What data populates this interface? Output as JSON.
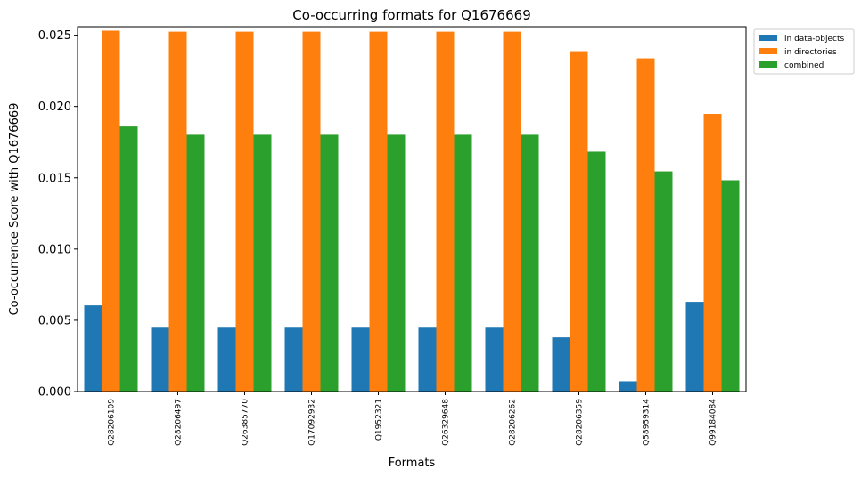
{
  "chart_data": {
    "type": "bar",
    "title": "Co-occurring formats for Q1676669",
    "xlabel": "Formats",
    "ylabel": "Co-occurrence Score with Q1676669",
    "categories": [
      "Q28206109",
      "Q28206497",
      "Q26385770",
      "Q17092932",
      "Q1952321",
      "Q26329648",
      "Q28206262",
      "Q28206359",
      "Q58959314",
      "Q99184084"
    ],
    "series": [
      {
        "name": "in data-objects",
        "color": "#1f77b4",
        "values": [
          0.00605,
          0.00448,
          0.00448,
          0.00448,
          0.00448,
          0.00448,
          0.00448,
          0.0038,
          0.00072,
          0.0063
        ]
      },
      {
        "name": "in directories",
        "color": "#ff7f0e",
        "values": [
          0.02532,
          0.02525,
          0.02525,
          0.02525,
          0.02525,
          0.02525,
          0.02525,
          0.02388,
          0.02338,
          0.01948
        ]
      },
      {
        "name": "combined",
        "color": "#2ca02c",
        "values": [
          0.0186,
          0.01802,
          0.01802,
          0.01802,
          0.01802,
          0.01802,
          0.01802,
          0.01683,
          0.01545,
          0.01483
        ]
      }
    ],
    "yticks": [
      "0.000",
      "0.005",
      "0.010",
      "0.015",
      "0.020",
      "0.025"
    ],
    "ytick_values": [
      0,
      0.005,
      0.01,
      0.015,
      0.02,
      0.025
    ],
    "ylim": [
      0,
      0.0256
    ],
    "legend_position": "upper-right-outside"
  }
}
